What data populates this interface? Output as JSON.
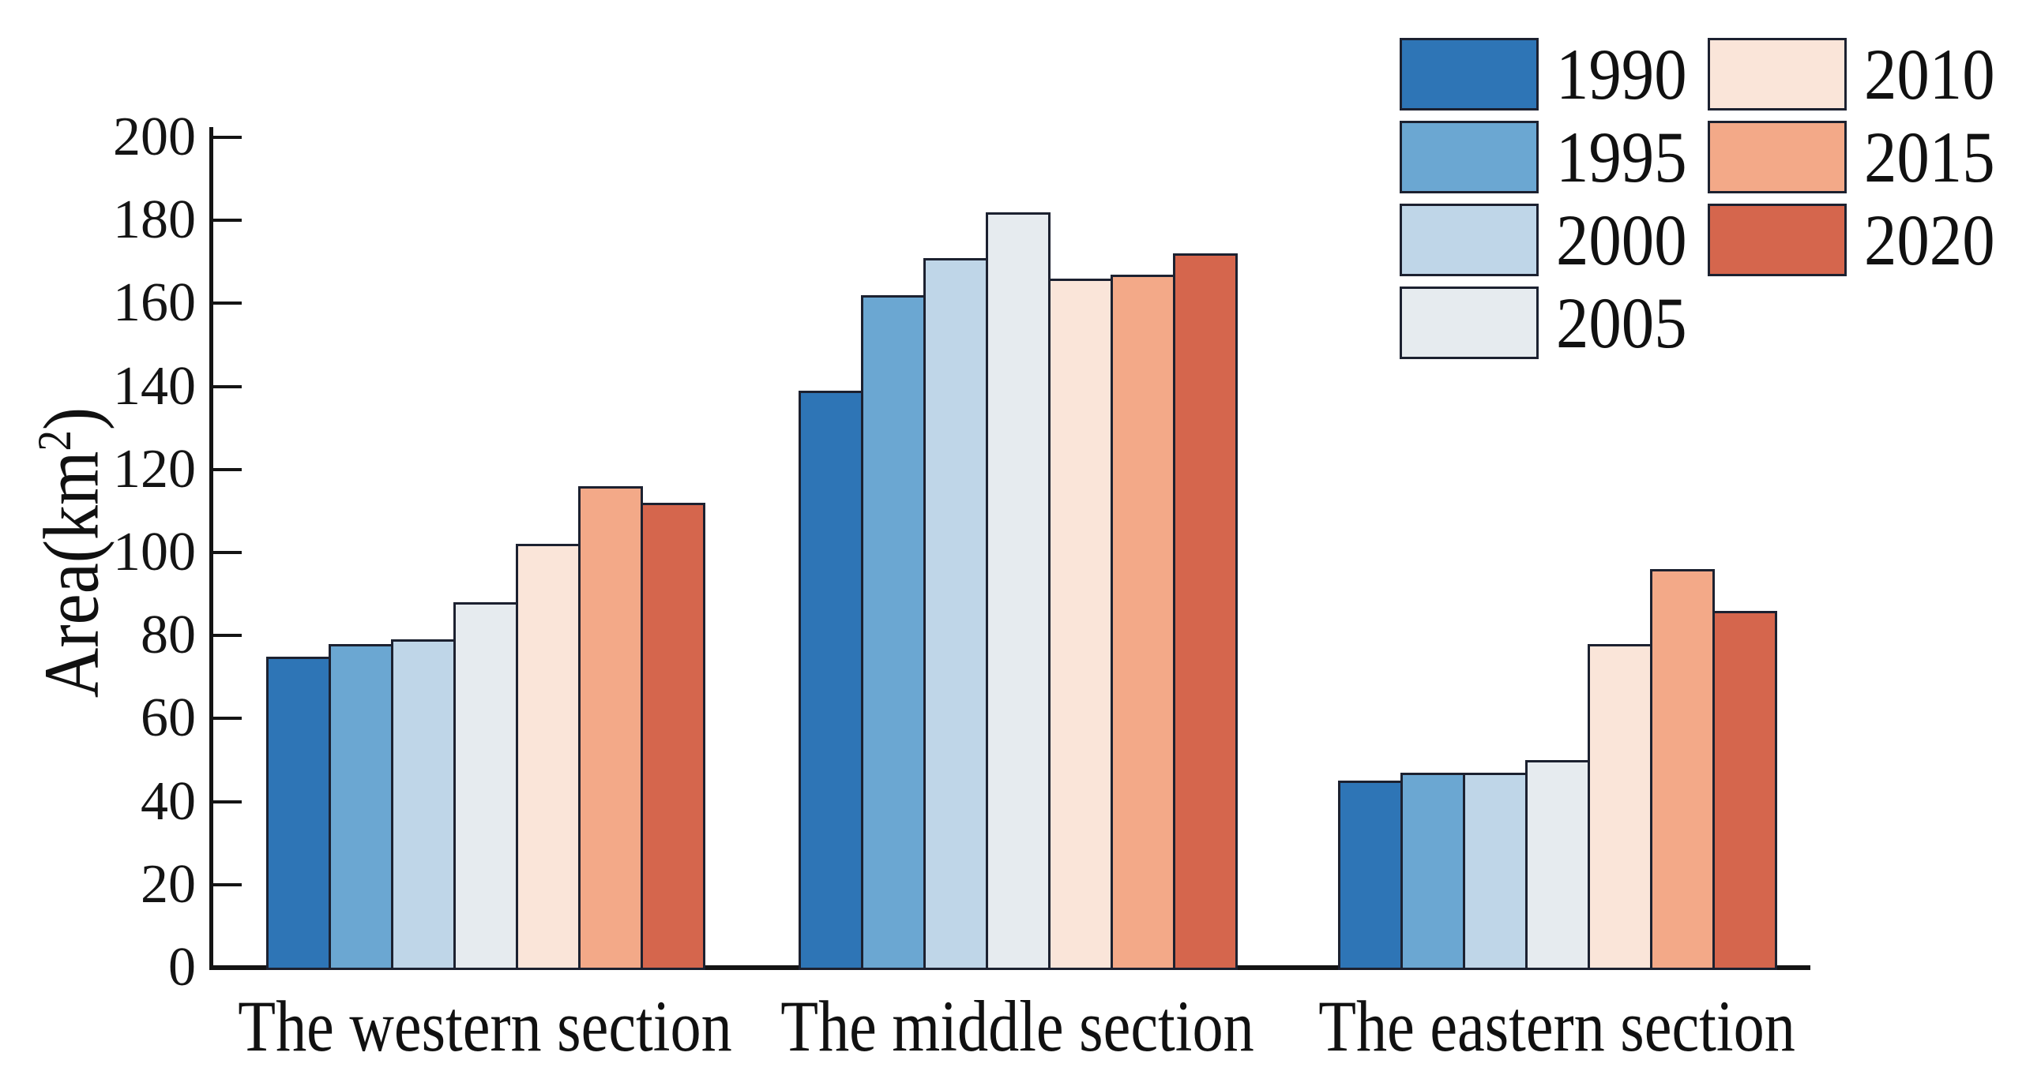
{
  "figure": {
    "background": "#ffffff",
    "axis_color": "#141414",
    "bar_border_color": "#1c2130",
    "text_color": "#111111"
  },
  "chart_data": {
    "type": "bar",
    "title": "",
    "xlabel": "",
    "ylabel": "Area(km²)",
    "ylabel_parts": {
      "prefix": "Area(km",
      "sup": "2",
      "suffix": ")"
    },
    "ylim": [
      0,
      200
    ],
    "yticks": [
      0,
      20,
      40,
      60,
      80,
      100,
      120,
      140,
      160,
      180,
      200
    ],
    "grid": false,
    "legend_position": "top-right",
    "legend_columns": [
      [
        "1990",
        "1995",
        "2000",
        "2005"
      ],
      [
        "2010",
        "2015",
        "2020"
      ]
    ],
    "categories": [
      "The western section",
      "The middle section",
      "The eastern section"
    ],
    "series": [
      {
        "name": "1990",
        "color": "#2E75B6",
        "values": [
          75,
          139,
          45
        ]
      },
      {
        "name": "1995",
        "color": "#6BA7D2",
        "values": [
          78,
          162,
          47
        ]
      },
      {
        "name": "2000",
        "color": "#BFD6E8",
        "values": [
          79,
          171,
          47
        ]
      },
      {
        "name": "2005",
        "color": "#E6EBEF",
        "values": [
          88,
          182,
          50
        ]
      },
      {
        "name": "2010",
        "color": "#FAE5D9",
        "values": [
          102,
          166,
          78
        ]
      },
      {
        "name": "2015",
        "color": "#F3A988",
        "values": [
          116,
          167,
          96
        ]
      },
      {
        "name": "2020",
        "color": "#D5664D",
        "values": [
          112,
          172,
          86
        ]
      }
    ]
  }
}
